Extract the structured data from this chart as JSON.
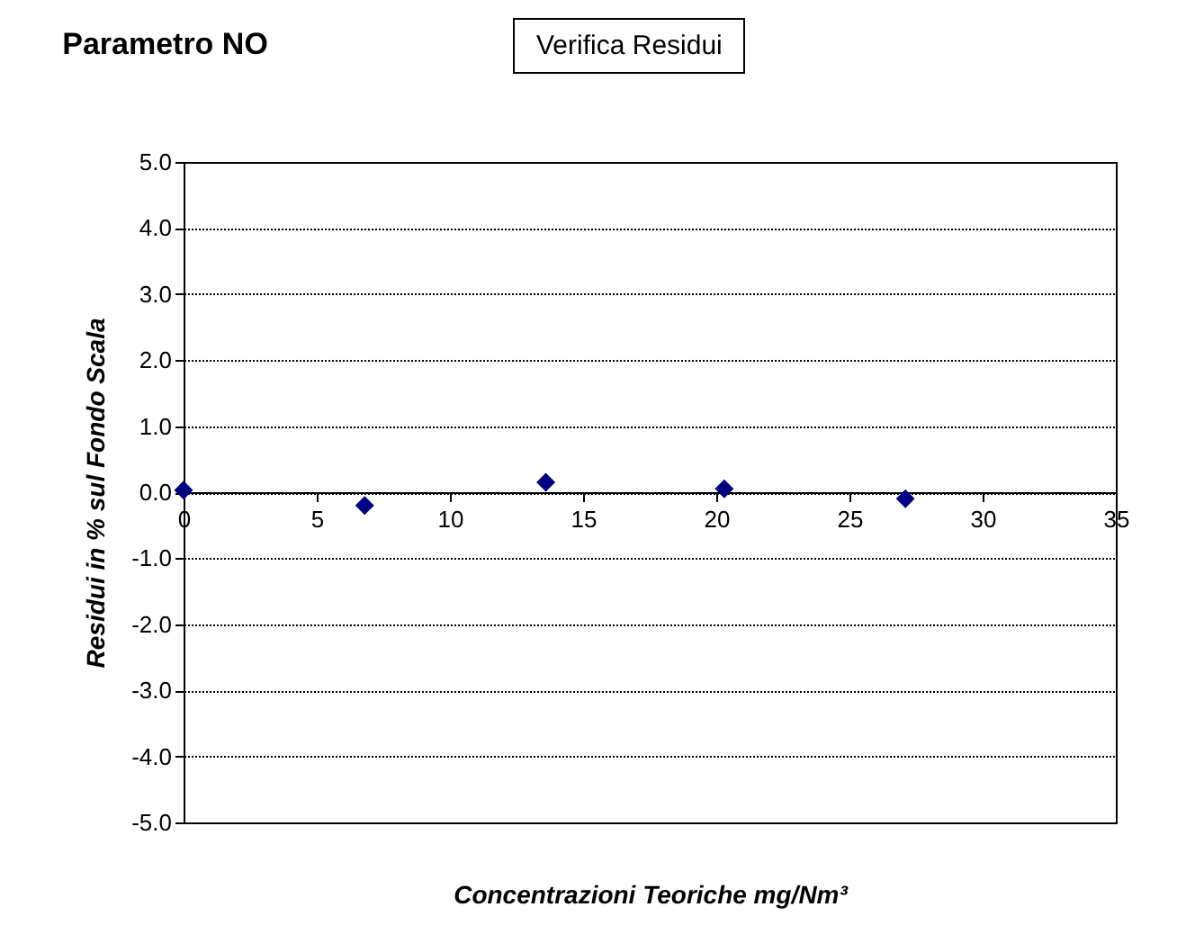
{
  "chart_data": {
    "type": "scatter",
    "title": "Parametro NO",
    "annotations": [
      "Verifica Residui"
    ],
    "xlabel": "Concentrazioni Teoriche mg/Nm³",
    "ylabel": "Residui  in % sul Fondo Scala",
    "x": [
      0,
      6.8,
      13.6,
      20.3,
      27.1
    ],
    "series": [
      {
        "color": "#000080",
        "values": [
          0.03,
          -0.2,
          0.15,
          0.05,
          -0.1
        ]
      }
    ],
    "xlim": [
      0,
      35
    ],
    "xticks": [
      0,
      5,
      10,
      15,
      20,
      25,
      30,
      35
    ],
    "ylim": [
      -5,
      5
    ],
    "yticks": [
      {
        "value": -5,
        "label": "-5.0"
      },
      {
        "value": -4,
        "label": "-4.0"
      },
      {
        "value": -3,
        "label": "-3.0"
      },
      {
        "value": -2,
        "label": "-2.0"
      },
      {
        "value": -1,
        "label": "-1.0"
      },
      {
        "value": 0,
        "label": "0.0"
      },
      {
        "value": 1,
        "label": "1.0"
      },
      {
        "value": 2,
        "label": "2.0"
      },
      {
        "value": 3,
        "label": "3.0"
      },
      {
        "value": 4,
        "label": "4.0"
      },
      {
        "value": 5,
        "label": "5.0"
      }
    ],
    "grid": "y",
    "marker": "diamond"
  }
}
